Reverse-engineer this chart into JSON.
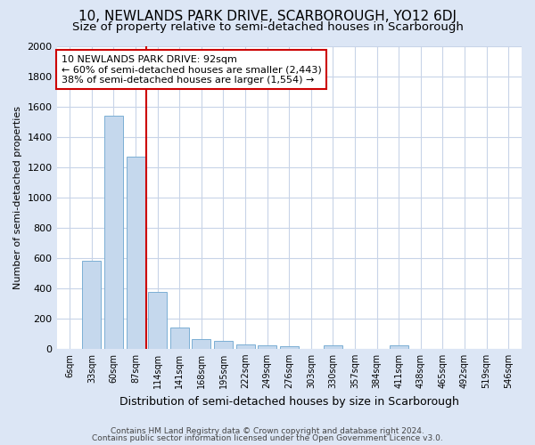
{
  "title": "10, NEWLANDS PARK DRIVE, SCARBOROUGH, YO12 6DJ",
  "subtitle": "Size of property relative to semi-detached houses in Scarborough",
  "xlabel": "Distribution of semi-detached houses by size in Scarborough",
  "ylabel": "Number of semi-detached properties",
  "categories": [
    "6sqm",
    "33sqm",
    "60sqm",
    "87sqm",
    "114sqm",
    "141sqm",
    "168sqm",
    "195sqm",
    "222sqm",
    "249sqm",
    "276sqm",
    "303sqm",
    "330sqm",
    "357sqm",
    "384sqm",
    "411sqm",
    "438sqm",
    "465sqm",
    "492sqm",
    "519sqm",
    "546sqm"
  ],
  "values": [
    0,
    580,
    1540,
    1270,
    375,
    140,
    65,
    50,
    28,
    20,
    15,
    0,
    20,
    0,
    0,
    20,
    0,
    0,
    0,
    0,
    0
  ],
  "bar_color": "#c5d8ed",
  "bar_edge_color": "#7bafd4",
  "red_line_x": 3.5,
  "annotation_text": "10 NEWLANDS PARK DRIVE: 92sqm\n← 60% of semi-detached houses are smaller (2,443)\n38% of semi-detached houses are larger (1,554) →",
  "annotation_box_color": "#ffffff",
  "annotation_box_edge": "#cc0000",
  "footer1": "Contains HM Land Registry data © Crown copyright and database right 2024.",
  "footer2": "Contains public sector information licensed under the Open Government Licence v3.0.",
  "ylim": [
    0,
    2000
  ],
  "yticks": [
    0,
    200,
    400,
    600,
    800,
    1000,
    1200,
    1400,
    1600,
    1800,
    2000
  ],
  "title_fontsize": 11,
  "subtitle_fontsize": 9.5,
  "fig_bg_color": "#dce6f5",
  "plot_bg_color": "#ffffff"
}
